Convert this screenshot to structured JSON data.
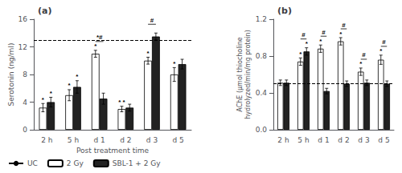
{
  "chart_data": [
    {
      "type": "bar",
      "title": "(a)",
      "ylabel": "Serotonin (ng/ml)",
      "xlabel": "Post treatment time",
      "categories": [
        "2 h",
        "5 h",
        "d 1",
        "d 2",
        "d 3",
        "d 5"
      ],
      "series": [
        {
          "name": "2 Gy",
          "color": "white",
          "values": [
            3.2,
            5.0,
            11.0,
            3.0,
            10.0,
            8.0
          ],
          "errors": [
            0.6,
            0.8,
            0.5,
            0.4,
            0.5,
            1.0
          ],
          "annotations": [
            "*",
            "*",
            "*",
            "* *",
            "*",
            "*"
          ]
        },
        {
          "name": "SBL-1 + 2 Gy",
          "color": "#222222",
          "values": [
            4.0,
            6.2,
            4.5,
            3.2,
            13.5,
            9.5
          ],
          "errors": [
            0.7,
            0.9,
            0.8,
            0.5,
            0.5,
            0.7
          ],
          "annotations": [
            "*",
            "*",
            null,
            null,
            null,
            null
          ]
        }
      ],
      "hlines": [
        {
          "name": "UC",
          "value": 13.0,
          "color": "black",
          "line_style": "dashed"
        }
      ],
      "brackets": [
        {
          "category": "d 1",
          "text": "*#"
        },
        {
          "category": "d 3",
          "text": "#"
        }
      ],
      "ylim": [
        0,
        16
      ],
      "yticks": [
        0,
        4,
        8,
        12,
        16
      ],
      "grid": false,
      "legend": "lower left"
    },
    {
      "type": "bar",
      "title": "(b)",
      "ylabel": "AChE (µmol thiocholine\nhydrolyzed/min/mg protein)",
      "categories": [
        "2 h",
        "5 h",
        "d 1",
        "d 2",
        "d 3",
        "d 5"
      ],
      "series": [
        {
          "name": "2 Gy",
          "color": "white",
          "values": [
            0.51,
            0.74,
            0.88,
            0.96,
            0.63,
            0.76
          ],
          "errors": [
            0.03,
            0.04,
            0.04,
            0.04,
            0.04,
            0.05
          ],
          "annotations": [
            null,
            "*",
            "*",
            "*",
            "*",
            "*"
          ]
        },
        {
          "name": "SBL-1 + 2 Gy",
          "color": "#222222",
          "values": [
            0.51,
            0.85,
            0.42,
            0.5,
            0.51,
            0.5
          ],
          "errors": [
            0.03,
            0.04,
            0.03,
            0.03,
            0.03,
            0.03
          ],
          "annotations": [
            null,
            "*",
            null,
            null,
            null,
            null
          ]
        }
      ],
      "hlines": [
        {
          "name": "UC",
          "value": 0.5,
          "color": "black",
          "line_style": "dashed"
        }
      ],
      "brackets": [
        {
          "category": "5 h",
          "text": "#"
        },
        {
          "category": "d 1",
          "text": "#"
        },
        {
          "category": "d 2",
          "text": "#"
        },
        {
          "category": "d 3",
          "text": "#"
        },
        {
          "category": "d 5",
          "text": "#"
        }
      ],
      "ylim": [
        0.0,
        1.2
      ],
      "yticks": [
        {
          "value": 0.0,
          "label": "0.0"
        },
        0.4,
        0.8,
        1.2
      ],
      "grid": false
    }
  ]
}
